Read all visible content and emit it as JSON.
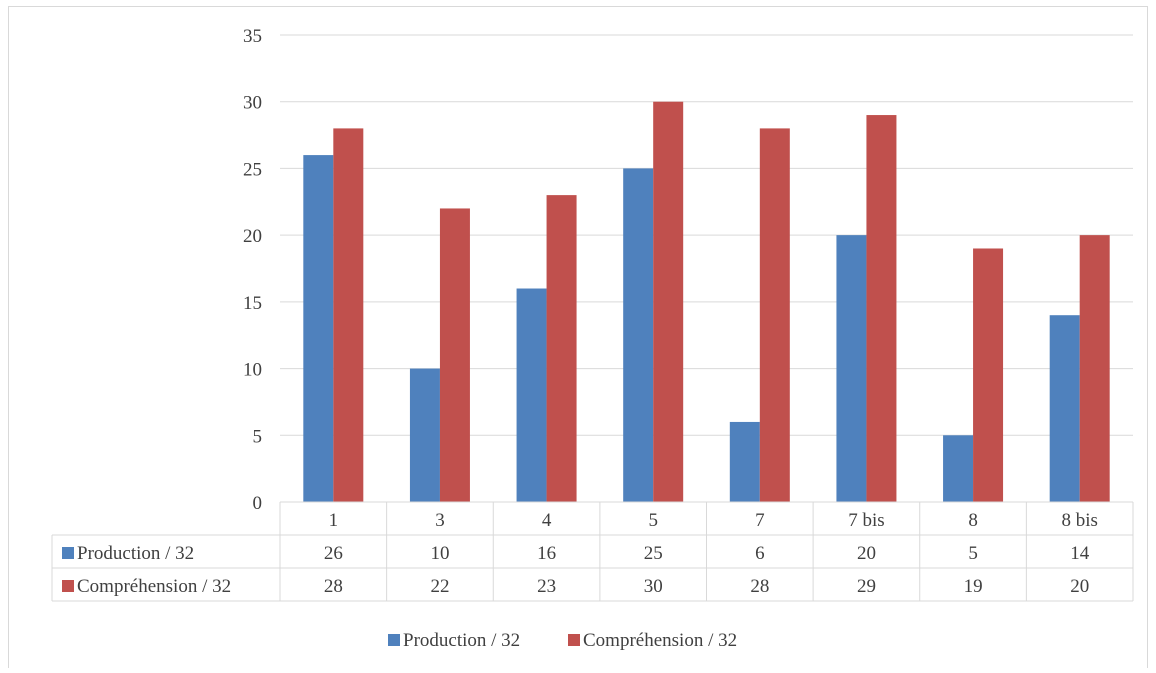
{
  "chart_data": {
    "type": "bar",
    "categories": [
      "1",
      "3",
      "4",
      "5",
      "7",
      "7 bis",
      "8",
      "8 bis"
    ],
    "series": [
      {
        "name": "Production / 32",
        "values": [
          26,
          10,
          16,
          25,
          6,
          20,
          5,
          14
        ],
        "color": "#4f81bd"
      },
      {
        "name": "Compréhension / 32",
        "values": [
          28,
          22,
          23,
          30,
          28,
          29,
          19,
          20
        ],
        "color": "#c0504d"
      }
    ],
    "ylim": [
      0,
      35
    ],
    "yticks": [
      0,
      5,
      10,
      15,
      20,
      25,
      30,
      35
    ],
    "grid": true,
    "legend": "bottom",
    "data_table": true,
    "gridline_color": "#d9d9d9"
  }
}
